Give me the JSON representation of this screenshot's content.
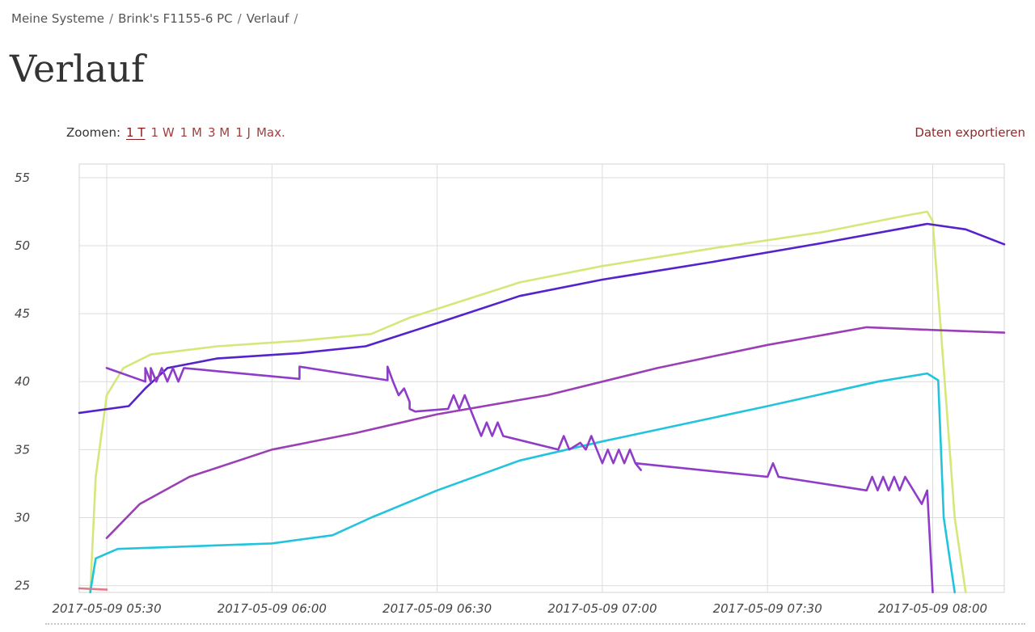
{
  "breadcrumb": {
    "items": [
      "Meine Systeme",
      "Brink's F1155-6 PC",
      "Verlauf"
    ],
    "separator": "/"
  },
  "page_title": "Verlauf",
  "zoom": {
    "label": "Zoomen:",
    "options": [
      {
        "label": "1 T",
        "active": true
      },
      {
        "label": "1 W",
        "active": false
      },
      {
        "label": "1 M",
        "active": false
      },
      {
        "label": "3 M",
        "active": false
      },
      {
        "label": "1 J",
        "active": false
      },
      {
        "label": "Max.",
        "active": false
      }
    ]
  },
  "export_label": "Daten exportieren",
  "chart_data": {
    "type": "line",
    "title": "",
    "xlabel": "",
    "ylabel": "",
    "x_ticks": [
      "2017-05-09 05:30",
      "2017-05-09 06:00",
      "2017-05-09 06:30",
      "2017-05-09 07:00",
      "2017-05-09 07:30",
      "2017-05-09 08:00"
    ],
    "y_ticks": [
      25,
      30,
      35,
      40,
      45,
      50,
      55
    ],
    "xlim": [
      "2017-05-09 05:25",
      "2017-05-09 08:13"
    ],
    "ylim": [
      24.5,
      56
    ],
    "grid": true,
    "legend": "none",
    "series": [
      {
        "color": "#d4e87a",
        "points": [
          [
            "2017-05-09 05:27",
            24.5
          ],
          [
            "2017-05-09 05:28",
            33
          ],
          [
            "2017-05-09 05:30",
            39
          ],
          [
            "2017-05-09 05:33",
            41
          ],
          [
            "2017-05-09 05:38",
            42
          ],
          [
            "2017-05-09 05:50",
            42.6
          ],
          [
            "2017-05-09 06:05",
            43
          ],
          [
            "2017-05-09 06:18",
            43.5
          ],
          [
            "2017-05-09 06:25",
            44.7
          ],
          [
            "2017-05-09 06:35",
            46
          ],
          [
            "2017-05-09 06:45",
            47.3
          ],
          [
            "2017-05-09 07:00",
            48.5
          ],
          [
            "2017-05-09 07:20",
            49.8
          ],
          [
            "2017-05-09 07:40",
            51
          ],
          [
            "2017-05-09 07:55",
            52.2
          ],
          [
            "2017-05-09 07:59",
            52.5
          ],
          [
            "2017-05-09 08:00",
            51.8
          ],
          [
            "2017-05-09 08:02",
            41
          ],
          [
            "2017-05-09 08:04",
            30
          ],
          [
            "2017-05-09 08:06",
            24.5
          ]
        ]
      },
      {
        "color": "#5522cc",
        "points": [
          [
            "2017-05-09 05:25",
            37.7
          ],
          [
            "2017-05-09 05:34",
            38.2
          ],
          [
            "2017-05-09 05:37",
            39.5
          ],
          [
            "2017-05-09 05:41",
            41
          ],
          [
            "2017-05-09 05:50",
            41.7
          ],
          [
            "2017-05-09 06:05",
            42.1
          ],
          [
            "2017-05-09 06:17",
            42.6
          ],
          [
            "2017-05-09 06:30",
            44.3
          ],
          [
            "2017-05-09 06:45",
            46.3
          ],
          [
            "2017-05-09 07:00",
            47.5
          ],
          [
            "2017-05-09 07:20",
            48.8
          ],
          [
            "2017-05-09 07:40",
            50.2
          ],
          [
            "2017-05-09 07:59",
            51.6
          ],
          [
            "2017-05-09 08:06",
            51.2
          ],
          [
            "2017-05-09 08:13",
            50.1
          ]
        ]
      },
      {
        "color": "#9b3fb5",
        "points": [
          [
            "2017-05-09 05:30",
            28.5
          ],
          [
            "2017-05-09 05:36",
            31
          ],
          [
            "2017-05-09 05:45",
            33
          ],
          [
            "2017-05-09 06:00",
            35
          ],
          [
            "2017-05-09 06:15",
            36.2
          ],
          [
            "2017-05-09 06:30",
            37.6
          ],
          [
            "2017-05-09 06:50",
            39
          ],
          [
            "2017-05-09 07:10",
            41
          ],
          [
            "2017-05-09 07:30",
            42.7
          ],
          [
            "2017-05-09 07:48",
            44
          ],
          [
            "2017-05-09 08:00",
            43.8
          ],
          [
            "2017-05-09 08:13",
            43.6
          ]
        ]
      },
      {
        "color": "#22c4dc",
        "points": [
          [
            "2017-05-09 05:27",
            24.5
          ],
          [
            "2017-05-09 05:28",
            27
          ],
          [
            "2017-05-09 05:32",
            27.7
          ],
          [
            "2017-05-09 06:00",
            28.1
          ],
          [
            "2017-05-09 06:11",
            28.7
          ],
          [
            "2017-05-09 06:18",
            30
          ],
          [
            "2017-05-09 06:30",
            32
          ],
          [
            "2017-05-09 06:45",
            34.2
          ],
          [
            "2017-05-09 07:00",
            35.6
          ],
          [
            "2017-05-09 07:30",
            38.2
          ],
          [
            "2017-05-09 07:50",
            40
          ],
          [
            "2017-05-09 07:59",
            40.6
          ],
          [
            "2017-05-09 08:01",
            40.1
          ],
          [
            "2017-05-09 08:02",
            30
          ],
          [
            "2017-05-09 08:04",
            24.5
          ]
        ]
      },
      {
        "color": "#8f3cc8",
        "points": [
          [
            "2017-05-09 05:30",
            41
          ],
          [
            "2017-05-09 05:37",
            40
          ],
          [
            "2017-05-09 05:37",
            41
          ],
          [
            "2017-05-09 05:38",
            40
          ],
          [
            "2017-05-09 05:38",
            41
          ],
          [
            "2017-05-09 05:39",
            40
          ],
          [
            "2017-05-09 05:40",
            41
          ],
          [
            "2017-05-09 05:41",
            40
          ],
          [
            "2017-05-09 05:42",
            41
          ],
          [
            "2017-05-09 05:43",
            40
          ],
          [
            "2017-05-09 05:44",
            41
          ],
          [
            "2017-05-09 06:05",
            40.2
          ],
          [
            "2017-05-09 06:05",
            41.1
          ],
          [
            "2017-05-09 06:21",
            40.1
          ],
          [
            "2017-05-09 06:21",
            41.1
          ],
          [
            "2017-05-09 06:22",
            40
          ],
          [
            "2017-05-09 06:23",
            39
          ],
          [
            "2017-05-09 06:24",
            39.5
          ],
          [
            "2017-05-09 06:25",
            38.5
          ],
          [
            "2017-05-09 06:25",
            38
          ],
          [
            "2017-05-09 06:26",
            37.8
          ],
          [
            "2017-05-09 06:32",
            38
          ],
          [
            "2017-05-09 06:33",
            39
          ],
          [
            "2017-05-09 06:34",
            38
          ],
          [
            "2017-05-09 06:35",
            39
          ],
          [
            "2017-05-09 06:36",
            38
          ],
          [
            "2017-05-09 06:37",
            37
          ],
          [
            "2017-05-09 06:38",
            36
          ],
          [
            "2017-05-09 06:39",
            37
          ],
          [
            "2017-05-09 06:40",
            36
          ],
          [
            "2017-05-09 06:41",
            37
          ],
          [
            "2017-05-09 06:42",
            36
          ],
          [
            "2017-05-09 06:52",
            35
          ],
          [
            "2017-05-09 06:53",
            36
          ],
          [
            "2017-05-09 06:54",
            35
          ],
          [
            "2017-05-09 06:56",
            35.5
          ],
          [
            "2017-05-09 06:57",
            35
          ],
          [
            "2017-05-09 06:58",
            36
          ],
          [
            "2017-05-09 06:59",
            35
          ],
          [
            "2017-05-09 07:00",
            34
          ],
          [
            "2017-05-09 07:01",
            35
          ],
          [
            "2017-05-09 07:02",
            34
          ],
          [
            "2017-05-09 07:03",
            35
          ],
          [
            "2017-05-09 07:04",
            34
          ],
          [
            "2017-05-09 07:05",
            35
          ],
          [
            "2017-05-09 07:06",
            34
          ],
          [
            "2017-05-09 07:07",
            33.5
          ],
          [
            "2017-05-09 07:06",
            34
          ],
          [
            "2017-05-09 07:30",
            33
          ],
          [
            "2017-05-09 07:31",
            34
          ],
          [
            "2017-05-09 07:32",
            33
          ],
          [
            "2017-05-09 07:48",
            32
          ],
          [
            "2017-05-09 07:49",
            33
          ],
          [
            "2017-05-09 07:50",
            32
          ],
          [
            "2017-05-09 07:51",
            33
          ],
          [
            "2017-05-09 07:52",
            32
          ],
          [
            "2017-05-09 07:53",
            33
          ],
          [
            "2017-05-09 07:54",
            32
          ],
          [
            "2017-05-09 07:55",
            33
          ],
          [
            "2017-05-09 07:58",
            31
          ],
          [
            "2017-05-09 07:59",
            32
          ],
          [
            "2017-05-09 08:00",
            24.5
          ]
        ]
      },
      {
        "color": "#e07a8a",
        "points": [
          [
            "2017-05-09 05:25",
            24.8
          ],
          [
            "2017-05-09 05:30",
            24.7
          ]
        ]
      }
    ]
  }
}
